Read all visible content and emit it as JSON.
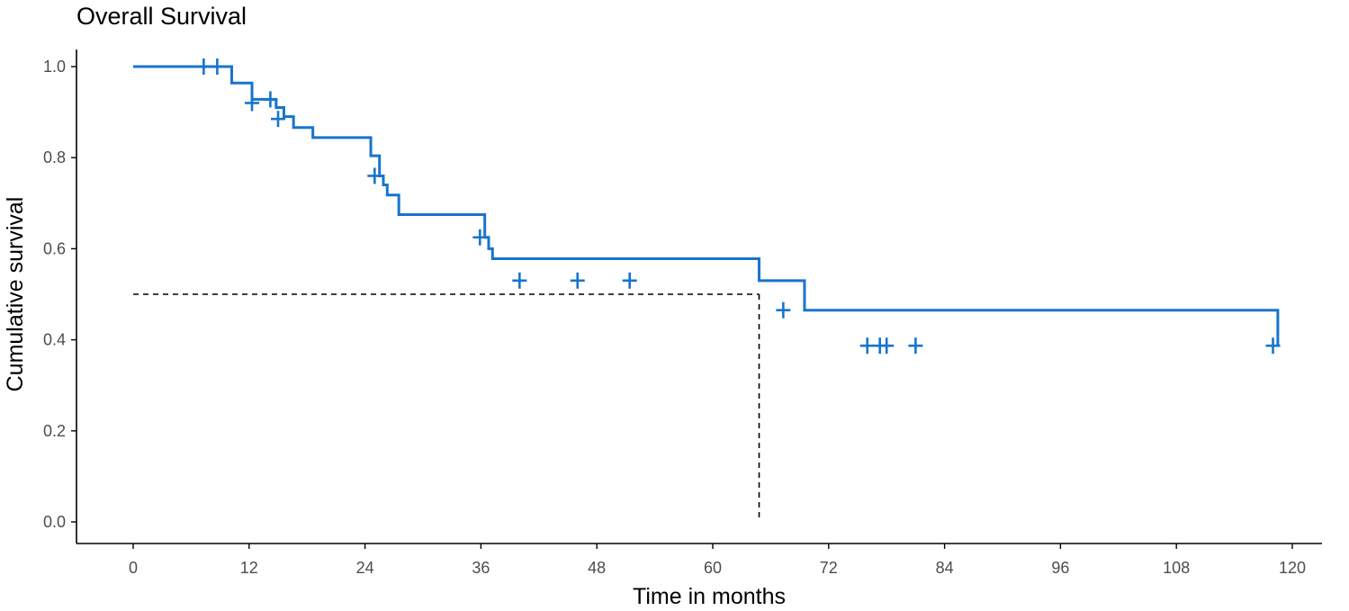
{
  "chart_data": {
    "type": "line",
    "subtype": "kaplan-meier-step",
    "title": "Overall Survival",
    "xlabel": "Time in months",
    "ylabel": "Cumulative survival",
    "xlim": [
      0,
      120
    ],
    "ylim": [
      0,
      1.0
    ],
    "xticks": [
      0,
      12,
      24,
      36,
      48,
      60,
      72,
      84,
      96,
      108,
      120
    ],
    "yticks": [
      0.0,
      0.2,
      0.4,
      0.6,
      0.8,
      1.0
    ],
    "xtick_labels": [
      "0",
      "12",
      "24",
      "36",
      "48",
      "60",
      "72",
      "84",
      "96",
      "108",
      "120"
    ],
    "ytick_labels": [
      "0.0",
      "0.2",
      "0.4",
      "0.6",
      "0.8",
      "1.0"
    ],
    "grid": false,
    "legend": "none",
    "series": [
      {
        "color": "#1874cd",
        "x": [
          0,
          10.2,
          12.3,
          14.8,
          15.6,
          16.6,
          18.6,
          24.6,
          25.5,
          25.9,
          26.3,
          27.5,
          36.4,
          36.8,
          37.2,
          64.8,
          69.5,
          118.5
        ],
        "y": [
          1.0,
          0.964,
          0.928,
          0.91,
          0.89,
          0.866,
          0.844,
          0.804,
          0.76,
          0.74,
          0.718,
          0.675,
          0.625,
          0.6,
          0.578,
          0.53,
          0.465,
          0.387
        ],
        "censored": [
          {
            "x": 7.3,
            "y": 1.0
          },
          {
            "x": 8.7,
            "y": 1.0
          },
          {
            "x": 12.3,
            "y": 0.92
          },
          {
            "x": 14.2,
            "y": 0.928
          },
          {
            "x": 15.0,
            "y": 0.885
          },
          {
            "x": 25.0,
            "y": 0.76
          },
          {
            "x": 35.9,
            "y": 0.625
          },
          {
            "x": 40.0,
            "y": 0.53
          },
          {
            "x": 46.0,
            "y": 0.53
          },
          {
            "x": 51.4,
            "y": 0.53
          },
          {
            "x": 67.3,
            "y": 0.465
          },
          {
            "x": 76.0,
            "y": 0.387
          },
          {
            "x": 77.3,
            "y": 0.387
          },
          {
            "x": 78.0,
            "y": 0.387
          },
          {
            "x": 81.0,
            "y": 0.387
          },
          {
            "x": 118.0,
            "y": 0.387
          }
        ]
      }
    ],
    "median": {
      "x": 64.8,
      "y": 0.5,
      "line_style": "dashed",
      "color": "#000000"
    }
  }
}
